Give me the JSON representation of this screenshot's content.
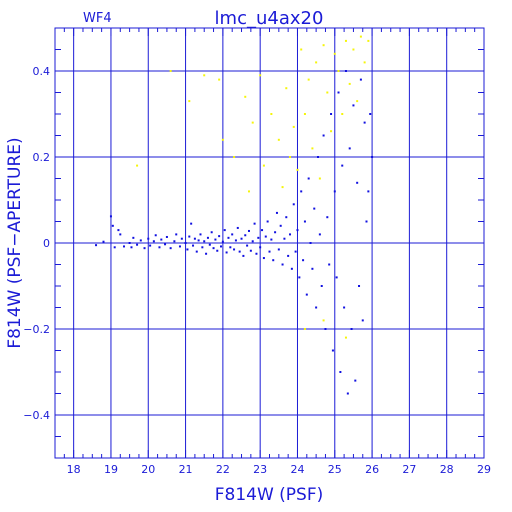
{
  "chart_data": {
    "type": "scatter",
    "panel_label": "WF4",
    "title": "lmc_u4ax20",
    "xlabel": "F814W (PSF)",
    "ylabel": "F814W (PSF−APERTURE)",
    "xlim": [
      17.5,
      29
    ],
    "ylim": [
      -0.5,
      0.5
    ],
    "x_ticks": [
      18,
      19,
      20,
      21,
      22,
      23,
      24,
      25,
      26,
      27,
      28,
      29
    ],
    "y_ticks": [
      -0.4,
      -0.2,
      0,
      0.2,
      0.4
    ],
    "x_tick_labels": [
      "18",
      "19",
      "20",
      "21",
      "22",
      "23",
      "24",
      "25",
      "26",
      "27",
      "28",
      "29"
    ],
    "y_tick_labels": [
      "−0.4",
      "−0.2",
      "0",
      "0.2",
      "0.4"
    ],
    "grid": true,
    "colors": {
      "axes": "#1b1bd6",
      "good": "#1010e0",
      "rejected": "#f5f50a"
    },
    "series": [
      {
        "color": "#1010e0",
        "points": [
          [
            18.6,
            -0.005
          ],
          [
            18.8,
            0.003
          ],
          [
            19.0,
            0.062
          ],
          [
            19.05,
            0.04
          ],
          [
            19.1,
            -0.01
          ],
          [
            19.2,
            0.03
          ],
          [
            19.25,
            0.02
          ],
          [
            19.35,
            -0.008
          ],
          [
            19.5,
            0.0
          ],
          [
            19.55,
            -0.01
          ],
          [
            19.6,
            0.012
          ],
          [
            19.7,
            -0.004
          ],
          [
            19.8,
            0.006
          ],
          [
            19.9,
            -0.012
          ],
          [
            20.0,
            0.01
          ],
          [
            20.05,
            -0.006
          ],
          [
            20.15,
            0.004
          ],
          [
            20.2,
            0.018
          ],
          [
            20.3,
            -0.01
          ],
          [
            20.35,
            0.008
          ],
          [
            20.45,
            -0.003
          ],
          [
            20.5,
            0.014
          ],
          [
            20.6,
            -0.012
          ],
          [
            20.7,
            0.004
          ],
          [
            20.75,
            0.02
          ],
          [
            20.85,
            -0.008
          ],
          [
            20.9,
            0.01
          ],
          [
            21.0,
            0.0
          ],
          [
            21.05,
            -0.015
          ],
          [
            21.1,
            0.015
          ],
          [
            21.15,
            0.045
          ],
          [
            21.2,
            -0.006
          ],
          [
            21.25,
            0.01
          ],
          [
            21.3,
            -0.02
          ],
          [
            21.35,
            0.006
          ],
          [
            21.4,
            0.02
          ],
          [
            21.45,
            -0.01
          ],
          [
            21.5,
            0.004
          ],
          [
            21.55,
            -0.025
          ],
          [
            21.6,
            0.012
          ],
          [
            21.65,
            -0.004
          ],
          [
            21.7,
            0.025
          ],
          [
            21.75,
            -0.012
          ],
          [
            21.8,
            0.008
          ],
          [
            21.85,
            -0.018
          ],
          [
            21.9,
            0.016
          ],
          [
            21.95,
            -0.008
          ],
          [
            22.0,
            0.003
          ],
          [
            22.05,
            0.03
          ],
          [
            22.1,
            -0.022
          ],
          [
            22.15,
            0.012
          ],
          [
            22.2,
            -0.01
          ],
          [
            22.25,
            0.02
          ],
          [
            22.3,
            -0.015
          ],
          [
            22.35,
            0.006
          ],
          [
            22.4,
            0.035
          ],
          [
            22.45,
            -0.02
          ],
          [
            22.5,
            0.01
          ],
          [
            22.55,
            -0.03
          ],
          [
            22.6,
            0.018
          ],
          [
            22.65,
            -0.006
          ],
          [
            22.7,
            0.028
          ],
          [
            22.75,
            -0.018
          ],
          [
            22.8,
            0.004
          ],
          [
            22.85,
            0.045
          ],
          [
            22.9,
            -0.025
          ],
          [
            22.95,
            0.012
          ],
          [
            23.0,
            -0.01
          ],
          [
            23.05,
            0.03
          ],
          [
            23.1,
            -0.035
          ],
          [
            23.15,
            0.015
          ],
          [
            23.2,
            0.05
          ],
          [
            23.25,
            -0.02
          ],
          [
            23.3,
            0.008
          ],
          [
            23.35,
            -0.04
          ],
          [
            23.4,
            0.025
          ],
          [
            23.45,
            0.07
          ],
          [
            23.5,
            -0.015
          ],
          [
            23.55,
            0.04
          ],
          [
            23.6,
            -0.05
          ],
          [
            23.65,
            0.01
          ],
          [
            23.7,
            0.06
          ],
          [
            23.75,
            -0.03
          ],
          [
            23.8,
            0.02
          ],
          [
            23.85,
            -0.06
          ],
          [
            23.9,
            0.09
          ],
          [
            23.95,
            -0.02
          ],
          [
            24.0,
            0.03
          ],
          [
            24.05,
            -0.08
          ],
          [
            24.1,
            0.12
          ],
          [
            24.15,
            -0.04
          ],
          [
            24.2,
            0.05
          ],
          [
            24.25,
            -0.12
          ],
          [
            24.3,
            0.15
          ],
          [
            24.35,
            0.0
          ],
          [
            24.4,
            -0.06
          ],
          [
            24.45,
            0.08
          ],
          [
            24.5,
            -0.15
          ],
          [
            24.55,
            0.2
          ],
          [
            24.6,
            0.02
          ],
          [
            24.65,
            -0.1
          ],
          [
            24.7,
            0.25
          ],
          [
            24.75,
            -0.2
          ],
          [
            24.8,
            0.06
          ],
          [
            24.85,
            -0.05
          ],
          [
            24.9,
            0.3
          ],
          [
            24.95,
            -0.25
          ],
          [
            25.0,
            0.12
          ],
          [
            25.05,
            -0.08
          ],
          [
            25.1,
            0.35
          ],
          [
            25.15,
            -0.3
          ],
          [
            25.2,
            0.18
          ],
          [
            25.25,
            -0.15
          ],
          [
            25.3,
            0.4
          ],
          [
            25.35,
            -0.35
          ],
          [
            25.4,
            0.22
          ],
          [
            25.45,
            -0.2
          ],
          [
            25.5,
            0.32
          ],
          [
            25.55,
            -0.32
          ],
          [
            25.6,
            0.14
          ],
          [
            25.65,
            -0.1
          ],
          [
            25.7,
            0.38
          ],
          [
            25.75,
            -0.18
          ],
          [
            25.8,
            0.28
          ],
          [
            25.85,
            0.05
          ],
          [
            25.9,
            0.12
          ],
          [
            25.95,
            0.3
          ],
          [
            26.0,
            0.2
          ]
        ]
      },
      {
        "color": "#f5f50a",
        "points": [
          [
            19.7,
            0.18
          ],
          [
            20.6,
            0.4
          ],
          [
            21.1,
            0.33
          ],
          [
            21.5,
            0.39
          ],
          [
            21.9,
            0.38
          ],
          [
            22.0,
            0.24
          ],
          [
            22.3,
            0.2
          ],
          [
            22.6,
            0.34
          ],
          [
            22.7,
            0.12
          ],
          [
            22.8,
            0.28
          ],
          [
            23.0,
            0.39
          ],
          [
            23.1,
            0.18
          ],
          [
            23.3,
            0.3
          ],
          [
            23.5,
            0.24
          ],
          [
            23.6,
            0.13
          ],
          [
            23.7,
            0.36
          ],
          [
            23.8,
            0.2
          ],
          [
            23.9,
            0.27
          ],
          [
            24.0,
            0.17
          ],
          [
            24.1,
            0.45
          ],
          [
            24.2,
            0.3
          ],
          [
            24.3,
            0.38
          ],
          [
            24.4,
            0.22
          ],
          [
            24.5,
            0.42
          ],
          [
            24.6,
            0.15
          ],
          [
            24.7,
            0.46
          ],
          [
            24.8,
            0.35
          ],
          [
            24.9,
            0.26
          ],
          [
            25.0,
            0.44
          ],
          [
            25.1,
            0.4
          ],
          [
            25.2,
            0.3
          ],
          [
            25.3,
            0.47
          ],
          [
            25.4,
            0.37
          ],
          [
            25.5,
            0.45
          ],
          [
            25.6,
            0.33
          ],
          [
            25.7,
            0.48
          ],
          [
            25.8,
            0.42
          ],
          [
            25.9,
            0.47
          ],
          [
            24.2,
            -0.2
          ],
          [
            24.7,
            -0.18
          ],
          [
            25.3,
            -0.22
          ]
        ]
      }
    ]
  }
}
